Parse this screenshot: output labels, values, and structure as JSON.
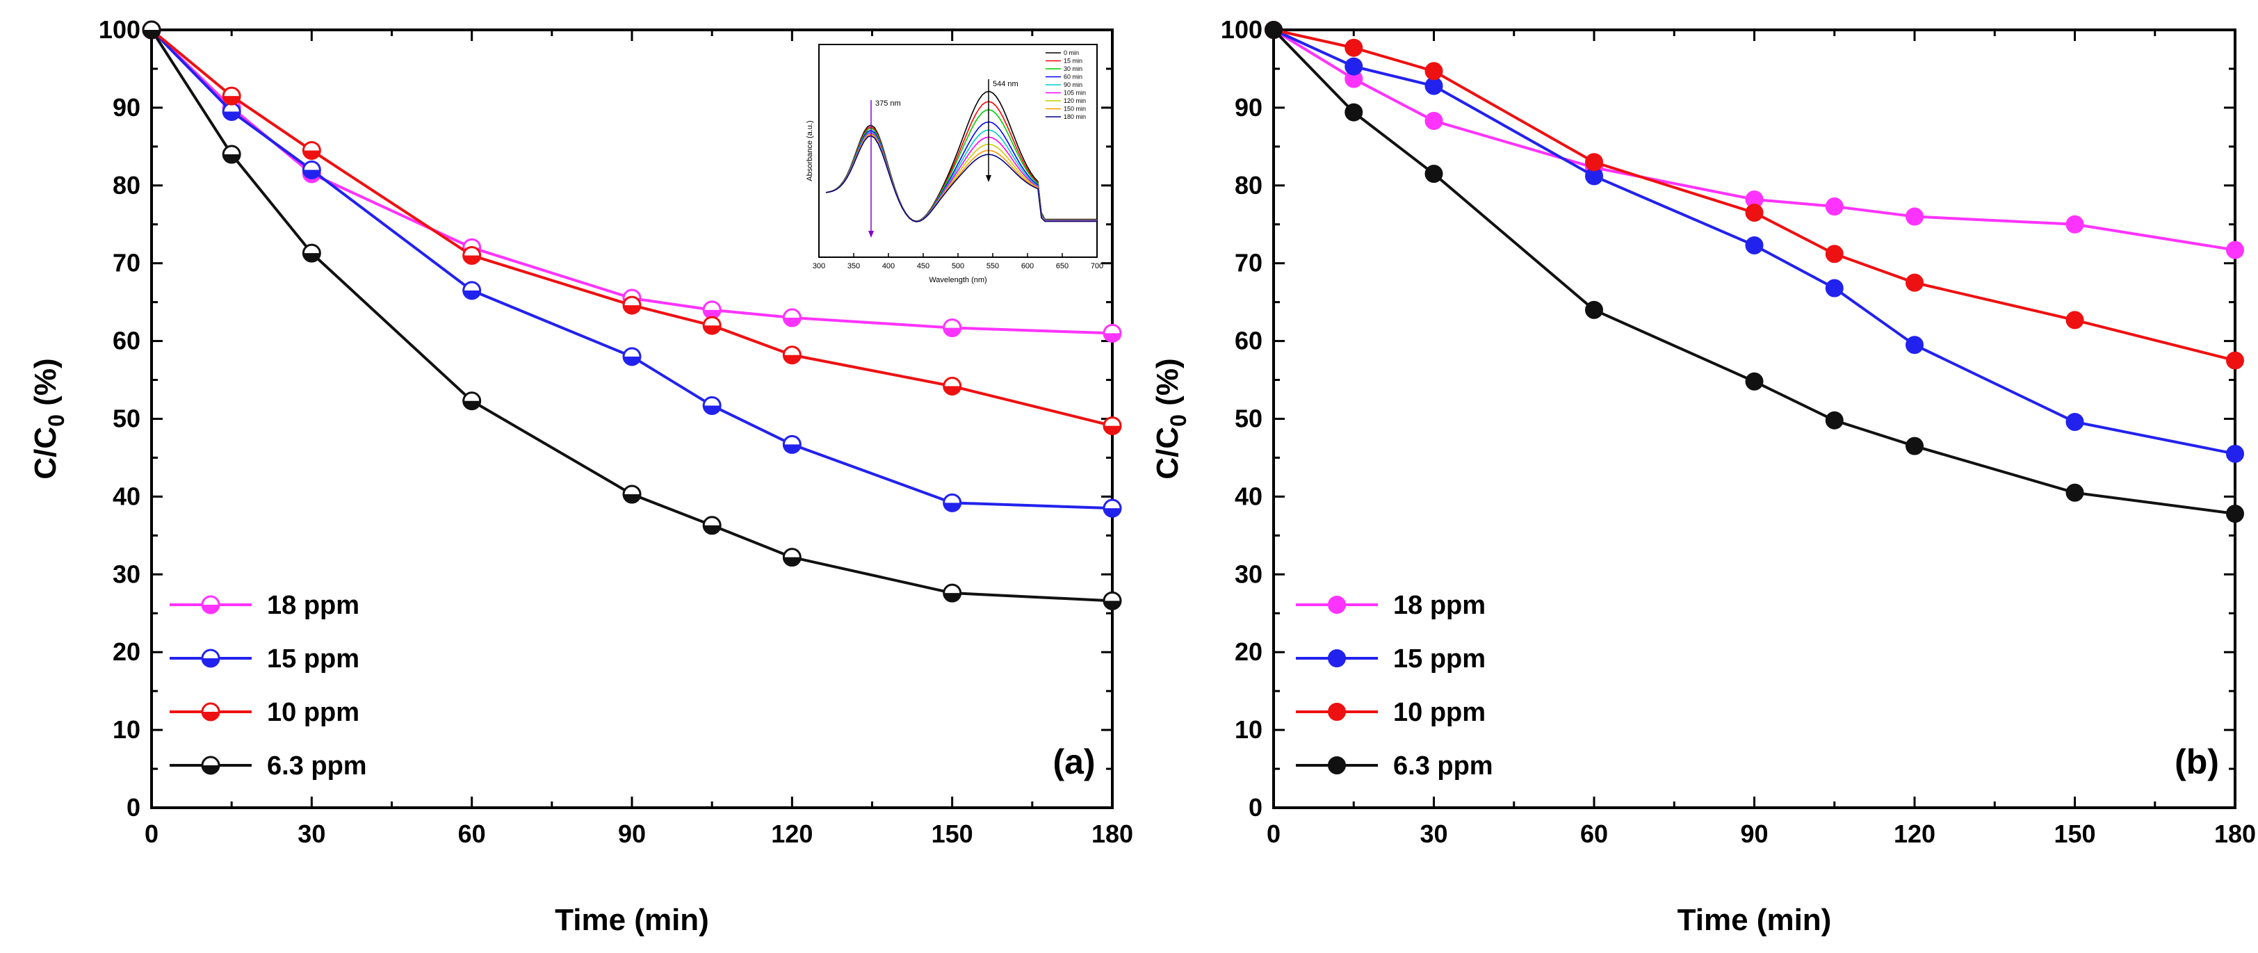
{
  "chart_data": [
    {
      "type": "line",
      "panel": "(a)",
      "xlabel": "Time (min)",
      "ylabel": "C/C",
      "ylabel_sub": "0",
      "ylabel_suffix": " (%)",
      "xlim": [
        0,
        180
      ],
      "ylim": [
        0,
        100
      ],
      "xticks": [
        0,
        30,
        60,
        90,
        120,
        150,
        180
      ],
      "yticks": [
        0,
        10,
        20,
        30,
        40,
        50,
        60,
        70,
        80,
        90,
        100
      ],
      "marker_style": "half-filled",
      "legend_position": "bottom-left",
      "x": [
        0,
        15,
        30,
        60,
        90,
        105,
        120,
        150,
        180
      ],
      "series": [
        {
          "name": "18 ppm",
          "color": "#ff33ff",
          "values": [
            100,
            90.0,
            81.5,
            72.0,
            65.5,
            64.0,
            63.0,
            61.7,
            61.0
          ]
        },
        {
          "name": "15 ppm",
          "color": "#2222ee",
          "values": [
            100,
            89.5,
            82.0,
            66.5,
            58.0,
            51.7,
            46.7,
            39.2,
            38.5
          ]
        },
        {
          "name": "10 ppm",
          "color": "#ee1111",
          "values": [
            100,
            91.5,
            84.5,
            71.0,
            64.6,
            62.0,
            58.2,
            54.2,
            49.1
          ]
        },
        {
          "name": "6.3 ppm",
          "color": "#111111",
          "values": [
            100,
            84.0,
            71.3,
            52.3,
            40.3,
            36.3,
            32.2,
            27.6,
            26.6
          ]
        }
      ],
      "inset": {
        "type": "line",
        "xlabel": "Wavelength (nm)",
        "ylabel": "Absorbance (a.u.)",
        "xlim": [
          300,
          700
        ],
        "xticks": [
          300,
          350,
          400,
          450,
          500,
          550,
          600,
          650,
          700
        ],
        "annotations": [
          "375 nm",
          "544 nm"
        ],
        "legend": [
          {
            "name": "0 min",
            "color": "#000000"
          },
          {
            "name": "15 min",
            "color": "#ff0000"
          },
          {
            "name": "30 min",
            "color": "#00cc00"
          },
          {
            "name": "60 min",
            "color": "#0000ff"
          },
          {
            "name": "90 min",
            "color": "#00cccc"
          },
          {
            "name": "105 min",
            "color": "#ff00ff"
          },
          {
            "name": "120 min",
            "color": "#cccc00"
          },
          {
            "name": "150 min",
            "color": "#ff9900"
          },
          {
            "name": "180 min",
            "color": "#000080"
          }
        ],
        "peak_values": [
          1.0,
          0.9,
          0.82,
          0.7,
          0.62,
          0.55,
          0.48,
          0.42,
          0.38
        ],
        "baseline": 0.18
      }
    },
    {
      "type": "line",
      "panel": "(b)",
      "xlabel": "Time (min)",
      "ylabel": "C/C",
      "ylabel_sub": "0",
      "ylabel_suffix": " (%)",
      "xlim": [
        0,
        180
      ],
      "ylim": [
        0,
        100
      ],
      "xticks": [
        0,
        30,
        60,
        90,
        120,
        150,
        180
      ],
      "yticks": [
        0,
        10,
        20,
        30,
        40,
        50,
        60,
        70,
        80,
        90,
        100
      ],
      "marker_style": "filled",
      "legend_position": "bottom-left",
      "x": [
        0,
        15,
        30,
        60,
        90,
        105,
        120,
        150,
        180
      ],
      "series": [
        {
          "name": "18 ppm",
          "color": "#ff33ff",
          "values": [
            100,
            93.7,
            88.3,
            82.3,
            78.2,
            77.3,
            76.0,
            75.0,
            71.7
          ]
        },
        {
          "name": "15 ppm",
          "color": "#2222ee",
          "values": [
            100,
            95.3,
            92.8,
            81.2,
            72.3,
            66.8,
            59.5,
            49.6,
            45.5
          ]
        },
        {
          "name": "10 ppm",
          "color": "#ee1111",
          "values": [
            100,
            97.7,
            94.7,
            83.0,
            76.5,
            71.2,
            67.5,
            62.7,
            57.5
          ]
        },
        {
          "name": "6.3 ppm",
          "color": "#111111",
          "values": [
            100,
            89.4,
            81.5,
            64.0,
            54.8,
            49.8,
            46.5,
            40.5,
            37.8
          ]
        }
      ]
    }
  ]
}
